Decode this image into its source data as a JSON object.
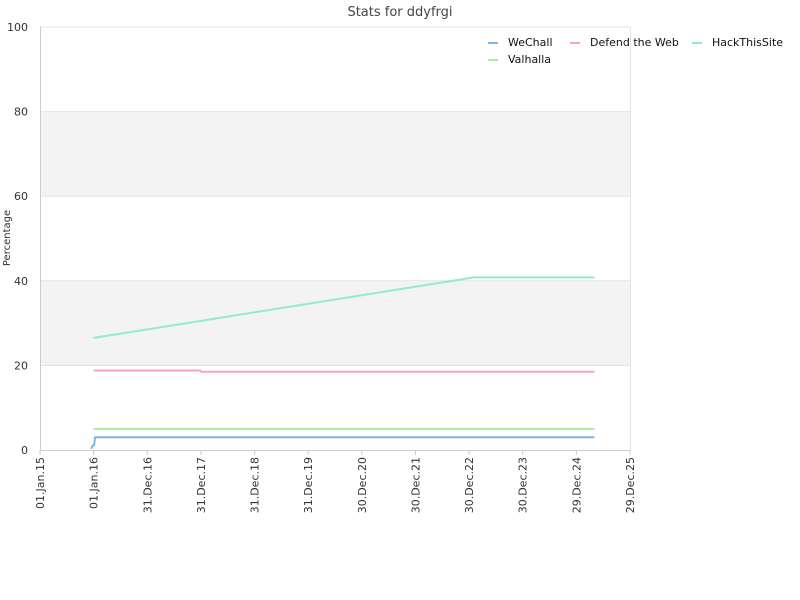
{
  "chart_data": {
    "type": "line",
    "title": "Stats for ddyfrgi",
    "xlabel": "",
    "ylabel": "Percentage",
    "ylim": [
      0,
      100
    ],
    "yticks": [
      0,
      20,
      40,
      60,
      80,
      100
    ],
    "xlim": [
      "2015-01-01",
      "2025-12-29"
    ],
    "xticks": [
      "01.Jan.15",
      "01.Jan.16",
      "31.Dec.16",
      "31.Dec.17",
      "31.Dec.18",
      "31.Dec.19",
      "30.Dec.20",
      "30.Dec.21",
      "30.Dec.22",
      "30.Dec.23",
      "29.Dec.24",
      "29.Dec.25"
    ],
    "xtick_dates": [
      "2015-01-01",
      "2016-01-01",
      "2016-12-31",
      "2017-12-31",
      "2018-12-31",
      "2019-12-31",
      "2020-12-30",
      "2021-12-30",
      "2022-12-30",
      "2023-12-30",
      "2024-12-29",
      "2025-12-29"
    ],
    "grid": true,
    "legend": "top-right",
    "series": [
      {
        "name": "WeChall",
        "color": "#7cb5ec",
        "points": [
          [
            "2015-12-15",
            0.3
          ],
          [
            "2015-12-25",
            1.0
          ],
          [
            "2016-01-05",
            1.2
          ],
          [
            "2016-01-10",
            3.0
          ],
          [
            "2025-05-01",
            3.0
          ]
        ]
      },
      {
        "name": "Defend the Web",
        "color": "#f7a3b9",
        "points": [
          [
            "2016-01-01",
            18.8
          ],
          [
            "2017-12-25",
            18.8
          ],
          [
            "2018-01-05",
            18.5
          ],
          [
            "2025-05-01",
            18.5
          ]
        ]
      },
      {
        "name": "HackThisSite",
        "color": "#90ed c4",
        "points": [
          [
            "2016-01-01",
            26.5
          ],
          [
            "2023-02-01",
            40.8
          ],
          [
            "2025-05-01",
            40.8
          ]
        ]
      },
      {
        "name": "Valhalla",
        "color": "#a6ee98",
        "points": [
          [
            "2016-01-01",
            5.0
          ],
          [
            "2025-05-01",
            5.0
          ]
        ]
      }
    ]
  }
}
